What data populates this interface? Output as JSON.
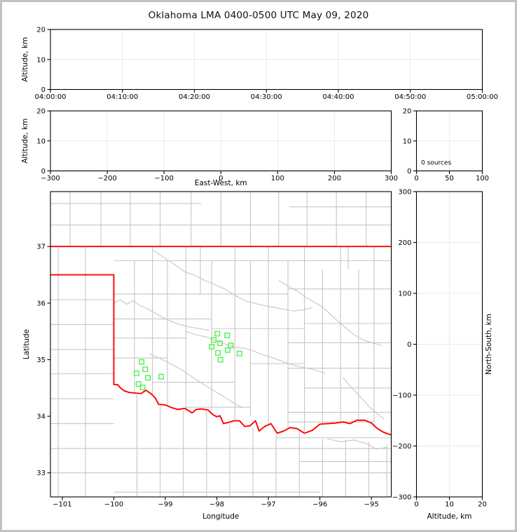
{
  "title": "Oklahoma LMA 0400-0500 UTC May 09, 2020",
  "colors": {
    "source_green": "#50F050",
    "state_border_red": "#FF0000",
    "county_gray": "#C6C6C6",
    "grid_gray": "#E8E8E8",
    "axis_black": "#000000",
    "figure_border": "#C2C2C2",
    "background": "#FFFFFF"
  },
  "chart_data": [
    {
      "id": "time_height",
      "type": "scatter",
      "xlabel": "",
      "ylabel": "Altitude, km",
      "xlim": [
        0,
        60
      ],
      "ylim": [
        0,
        20
      ],
      "grid": true,
      "xticks": [
        {
          "v": 0,
          "t": "04:00:00"
        },
        {
          "v": 10,
          "t": "04:10:00"
        },
        {
          "v": 20,
          "t": "04:20:00"
        },
        {
          "v": 30,
          "t": "04:30:00"
        },
        {
          "v": 40,
          "t": "04:40:00"
        },
        {
          "v": 50,
          "t": "04:50:00"
        },
        {
          "v": 60,
          "t": "05:00:00"
        }
      ],
      "yticks": [
        {
          "v": 0,
          "t": "0"
        },
        {
          "v": 10,
          "t": "10"
        },
        {
          "v": 20,
          "t": "20"
        }
      ],
      "points": []
    },
    {
      "id": "ew_height",
      "type": "scatter",
      "xlabel": "East-West, km",
      "ylabel": "Altitude, km",
      "xlim": [
        -300,
        300
      ],
      "ylim": [
        0,
        20
      ],
      "grid": true,
      "xticks": [
        {
          "v": -300,
          "t": "−300"
        },
        {
          "v": -200,
          "t": "−200"
        },
        {
          "v": -100,
          "t": "−100"
        },
        {
          "v": 0,
          "t": "0"
        },
        {
          "v": 100,
          "t": "100"
        },
        {
          "v": 200,
          "t": "200"
        },
        {
          "v": 300,
          "t": "300"
        }
      ],
      "yticks": [
        {
          "v": 0,
          "t": "0"
        },
        {
          "v": 10,
          "t": "10"
        },
        {
          "v": 20,
          "t": "20"
        }
      ],
      "points": []
    },
    {
      "id": "alt_histogram",
      "type": "line",
      "xlabel": "",
      "ylabel": "",
      "xlim": [
        0,
        100
      ],
      "ylim": [
        0,
        20
      ],
      "grid": true,
      "xticks": [
        {
          "v": 0,
          "t": "0"
        },
        {
          "v": 50,
          "t": "50"
        },
        {
          "v": 100,
          "t": "100"
        }
      ],
      "yticks": [
        {
          "v": 0,
          "t": "0"
        },
        {
          "v": 10,
          "t": "10"
        },
        {
          "v": 20,
          "t": "20"
        }
      ],
      "annotation": {
        "text": "0 sources"
      },
      "points": []
    },
    {
      "id": "plan_view",
      "type": "scatter",
      "xlabel": "Longitude",
      "ylabel": "Latitude",
      "xlim": [
        -101.23,
        -94.615
      ],
      "ylim": [
        32.575,
        37.97
      ],
      "grid": false,
      "xticks": [
        {
          "v": -101,
          "t": "−101"
        },
        {
          "v": -100,
          "t": "−100"
        },
        {
          "v": -99,
          "t": "−99"
        },
        {
          "v": -98,
          "t": "−98"
        },
        {
          "v": -97,
          "t": "−97"
        },
        {
          "v": -96,
          "t": "−96"
        },
        {
          "v": -95,
          "t": "−95"
        }
      ],
      "yticks": [
        {
          "v": 33,
          "t": "33"
        },
        {
          "v": 34,
          "t": "34"
        },
        {
          "v": 35,
          "t": "35"
        },
        {
          "v": 36,
          "t": "36"
        },
        {
          "v": 37,
          "t": "37"
        }
      ],
      "sources": [
        [
          -97.99,
          35.46
        ],
        [
          -97.8,
          35.43
        ],
        [
          -98.06,
          35.35
        ],
        [
          -97.94,
          35.29
        ],
        [
          -98.1,
          35.23
        ],
        [
          -97.73,
          35.25
        ],
        [
          -97.79,
          35.17
        ],
        [
          -97.98,
          35.12
        ],
        [
          -97.56,
          35.11
        ],
        [
          -97.93,
          35.0
        ],
        [
          -99.46,
          34.96
        ],
        [
          -99.39,
          34.83
        ],
        [
          -99.56,
          34.76
        ],
        [
          -99.34,
          34.68
        ],
        [
          -99.08,
          34.7
        ],
        [
          -99.52,
          34.57
        ],
        [
          -99.44,
          34.51
        ]
      ],
      "state_border": [
        [
          [
            -101.23,
            37.0
          ],
          [
            -94.615,
            37.0
          ]
        ],
        [
          [
            -101.23,
            36.5
          ],
          [
            -100.0,
            36.5
          ],
          [
            -100.0,
            34.562
          ],
          [
            -99.93,
            34.56
          ],
          [
            -99.87,
            34.5
          ],
          [
            -99.8,
            34.45
          ],
          [
            -99.7,
            34.42
          ],
          [
            -99.58,
            34.41
          ],
          [
            -99.47,
            34.4
          ],
          [
            -99.38,
            34.46
          ],
          [
            -99.28,
            34.4
          ],
          [
            -99.2,
            34.33
          ],
          [
            -99.13,
            34.21
          ],
          [
            -99.0,
            34.2
          ],
          [
            -98.87,
            34.15
          ],
          [
            -98.76,
            34.12
          ],
          [
            -98.62,
            34.14
          ],
          [
            -98.48,
            34.06
          ],
          [
            -98.4,
            34.12
          ],
          [
            -98.3,
            34.13
          ],
          [
            -98.17,
            34.11
          ],
          [
            -98.08,
            34.03
          ],
          [
            -98.0,
            33.99
          ],
          [
            -97.94,
            34.01
          ],
          [
            -97.87,
            33.87
          ],
          [
            -97.78,
            33.89
          ],
          [
            -97.67,
            33.92
          ],
          [
            -97.56,
            33.92
          ],
          [
            -97.46,
            33.82
          ],
          [
            -97.36,
            33.83
          ],
          [
            -97.25,
            33.92
          ],
          [
            -97.18,
            33.74
          ],
          [
            -97.07,
            33.82
          ],
          [
            -96.95,
            33.87
          ],
          [
            -96.83,
            33.7
          ],
          [
            -96.7,
            33.74
          ],
          [
            -96.58,
            33.8
          ],
          [
            -96.44,
            33.78
          ],
          [
            -96.3,
            33.7
          ],
          [
            -96.15,
            33.75
          ],
          [
            -96.0,
            33.86
          ],
          [
            -95.85,
            33.87
          ],
          [
            -95.7,
            33.88
          ],
          [
            -95.55,
            33.9
          ],
          [
            -95.42,
            33.87
          ],
          [
            -95.28,
            33.93
          ],
          [
            -95.13,
            33.93
          ],
          [
            -95.0,
            33.88
          ],
          [
            -94.88,
            33.78
          ],
          [
            -94.77,
            33.72
          ],
          [
            -94.615,
            33.67
          ]
        ]
      ],
      "county_v": [
        [
          -100.85,
          37.0,
          37.97
        ],
        [
          -100.25,
          37.0,
          37.97
        ],
        [
          -99.68,
          37.0,
          37.97
        ],
        [
          -99.1,
          37.0,
          37.97
        ],
        [
          -98.5,
          37.0,
          37.97
        ],
        [
          -97.92,
          37.0,
          37.97
        ],
        [
          -97.35,
          37.0,
          37.97
        ],
        [
          -96.8,
          37.0,
          37.97
        ],
        [
          -96.25,
          37.0,
          37.97
        ],
        [
          -95.68,
          37.0,
          37.97
        ],
        [
          -95.1,
          37.0,
          37.97
        ],
        [
          -101.08,
          32.575,
          37.0
        ],
        [
          -100.55,
          32.575,
          37.0
        ],
        [
          -99.6,
          34.42,
          36.75
        ],
        [
          -99.25,
          34.37,
          37.0
        ],
        [
          -98.96,
          34.2,
          36.75
        ],
        [
          -98.6,
          34.08,
          37.0
        ],
        [
          -98.32,
          36.16,
          37.0
        ],
        [
          -98.1,
          34.1,
          36.75
        ],
        [
          -97.65,
          33.93,
          37.0
        ],
        [
          -97.35,
          34.0,
          36.75
        ],
        [
          -97.0,
          33.86,
          37.0
        ],
        [
          -96.62,
          33.78,
          36.75
        ],
        [
          -96.3,
          33.72,
          37.0
        ],
        [
          -95.95,
          33.86,
          36.6
        ],
        [
          -95.6,
          33.9,
          37.0
        ],
        [
          -95.45,
          36.6,
          37.0
        ],
        [
          -95.25,
          33.92,
          36.6
        ],
        [
          -94.95,
          33.76,
          37.0
        ],
        [
          -99.55,
          32.575,
          34.38
        ],
        [
          -99.1,
          32.575,
          34.18
        ],
        [
          -98.65,
          32.575,
          34.1
        ],
        [
          -98.2,
          32.575,
          34.08
        ],
        [
          -97.75,
          32.575,
          33.86
        ],
        [
          -97.3,
          32.575,
          33.8
        ],
        [
          -96.85,
          32.575,
          33.68
        ],
        [
          -96.4,
          32.575,
          33.75
        ],
        [
          -95.95,
          32.575,
          33.6
        ],
        [
          -95.5,
          32.575,
          33.58
        ],
        [
          -95.05,
          32.575,
          33.55
        ],
        [
          -94.7,
          32.575,
          33.5
        ]
      ],
      "county_h": [
        [
          37.38,
          -101.23,
          -94.615
        ],
        [
          37.76,
          -101.23,
          -98.3
        ],
        [
          37.7,
          -96.6,
          -94.615
        ],
        [
          36.06,
          -101.23,
          -100.0
        ],
        [
          35.62,
          -101.23,
          -100.0
        ],
        [
          35.18,
          -101.23,
          -100.0
        ],
        [
          34.75,
          -101.23,
          -100.0
        ],
        [
          34.31,
          -101.23,
          -100.0
        ],
        [
          33.87,
          -101.23,
          -100.0
        ],
        [
          33.43,
          -101.23,
          -94.615
        ],
        [
          33.0,
          -101.23,
          -94.615
        ],
        [
          32.66,
          -100.0,
          -96.0
        ],
        [
          33.62,
          -96.85,
          -94.615
        ],
        [
          33.2,
          -96.4,
          -94.615
        ],
        [
          36.75,
          -100.0,
          -94.615
        ],
        [
          36.16,
          -100.0,
          -96.62
        ],
        [
          36.25,
          -96.62,
          -94.615
        ],
        [
          35.72,
          -100.0,
          -98.1
        ],
        [
          35.55,
          -98.1,
          -96.3
        ],
        [
          35.64,
          -96.3,
          -94.615
        ],
        [
          35.38,
          -100.0,
          -98.6
        ],
        [
          35.3,
          -96.62,
          -94.615
        ],
        [
          35.03,
          -100.0,
          -98.96
        ],
        [
          34.93,
          -97.35,
          -96.3
        ],
        [
          34.85,
          -96.62,
          -94.615
        ],
        [
          34.6,
          -99.25,
          -97.65
        ],
        [
          34.5,
          -96.3,
          -94.615
        ],
        [
          34.16,
          -98.6,
          -97.35
        ],
        [
          34.07,
          -96.62,
          -94.615
        ],
        [
          33.9,
          -96.62,
          -94.95
        ]
      ],
      "rivers": [
        [
          [
            -99.25,
            36.94
          ],
          [
            -99.05,
            36.82
          ],
          [
            -98.85,
            36.7
          ],
          [
            -98.62,
            36.55
          ],
          [
            -98.45,
            36.5
          ],
          [
            -98.28,
            36.42
          ],
          [
            -98.05,
            36.33
          ],
          [
            -97.85,
            36.25
          ],
          [
            -97.62,
            36.12
          ],
          [
            -97.42,
            36.03
          ],
          [
            -97.2,
            35.98
          ],
          [
            -96.98,
            35.94
          ],
          [
            -96.75,
            35.9
          ],
          [
            -96.52,
            35.86
          ],
          [
            -96.32,
            35.88
          ],
          [
            -96.15,
            35.92
          ]
        ],
        [
          [
            -100.0,
            36.0
          ],
          [
            -99.88,
            36.06
          ],
          [
            -99.75,
            35.98
          ],
          [
            -99.62,
            36.04
          ],
          [
            -99.5,
            35.96
          ],
          [
            -99.35,
            35.9
          ],
          [
            -99.15,
            35.8
          ],
          [
            -98.95,
            35.7
          ],
          [
            -98.75,
            35.63
          ],
          [
            -98.55,
            35.58
          ],
          [
            -98.35,
            35.55
          ],
          [
            -98.15,
            35.52
          ]
        ],
        [
          [
            -98.6,
            35.5
          ],
          [
            -98.4,
            35.44
          ],
          [
            -98.2,
            35.4
          ],
          [
            -98.0,
            35.33
          ],
          [
            -97.82,
            35.27
          ],
          [
            -97.65,
            35.22
          ],
          [
            -97.45,
            35.2
          ],
          [
            -97.28,
            35.15
          ],
          [
            -97.1,
            35.08
          ],
          [
            -96.9,
            35.03
          ],
          [
            -96.7,
            34.96
          ],
          [
            -96.5,
            34.9
          ],
          [
            -96.3,
            34.86
          ],
          [
            -96.1,
            34.82
          ],
          [
            -95.9,
            34.76
          ]
        ],
        [
          [
            -96.8,
            36.4
          ],
          [
            -96.62,
            36.3
          ],
          [
            -96.45,
            36.22
          ],
          [
            -96.3,
            36.12
          ],
          [
            -96.12,
            36.02
          ],
          [
            -95.98,
            35.95
          ],
          [
            -95.85,
            35.85
          ],
          [
            -95.7,
            35.72
          ],
          [
            -95.52,
            35.58
          ],
          [
            -95.35,
            35.45
          ],
          [
            -95.18,
            35.36
          ],
          [
            -95.0,
            35.3
          ],
          [
            -94.8,
            35.25
          ]
        ],
        [
          [
            -99.3,
            35.1
          ],
          [
            -99.1,
            35.02
          ],
          [
            -98.9,
            34.93
          ],
          [
            -98.7,
            34.83
          ],
          [
            -98.52,
            34.72
          ],
          [
            -98.35,
            34.62
          ],
          [
            -98.18,
            34.52
          ],
          [
            -98.0,
            34.42
          ],
          [
            -97.82,
            34.32
          ],
          [
            -97.65,
            34.22
          ],
          [
            -97.5,
            34.15
          ]
        ],
        [
          [
            -95.55,
            34.68
          ],
          [
            -95.38,
            34.5
          ],
          [
            -95.2,
            34.33
          ],
          [
            -95.05,
            34.18
          ],
          [
            -94.9,
            34.05
          ],
          [
            -94.75,
            33.95
          ]
        ],
        [
          [
            -95.85,
            33.6
          ],
          [
            -95.6,
            33.55
          ],
          [
            -95.35,
            33.58
          ],
          [
            -95.1,
            33.52
          ],
          [
            -94.9,
            33.42
          ],
          [
            -94.7,
            33.45
          ]
        ]
      ]
    },
    {
      "id": "ns_height",
      "type": "scatter",
      "xlabel": "Altitude, km",
      "ylabel": "",
      "ylabel_right": "North-South, km",
      "xlim": [
        0,
        20
      ],
      "ylim": [
        -300,
        300
      ],
      "grid": true,
      "xticks": [
        {
          "v": 0,
          "t": "0"
        },
        {
          "v": 10,
          "t": "10"
        },
        {
          "v": 20,
          "t": "20"
        }
      ],
      "yticks": [
        {
          "v": 300,
          "t": "300"
        },
        {
          "v": 200,
          "t": "200"
        },
        {
          "v": 100,
          "t": "100"
        },
        {
          "v": 0,
          "t": "0"
        },
        {
          "v": -100,
          "t": "−100"
        },
        {
          "v": -200,
          "t": "−200"
        },
        {
          "v": -300,
          "t": "−300"
        }
      ],
      "points": []
    }
  ]
}
